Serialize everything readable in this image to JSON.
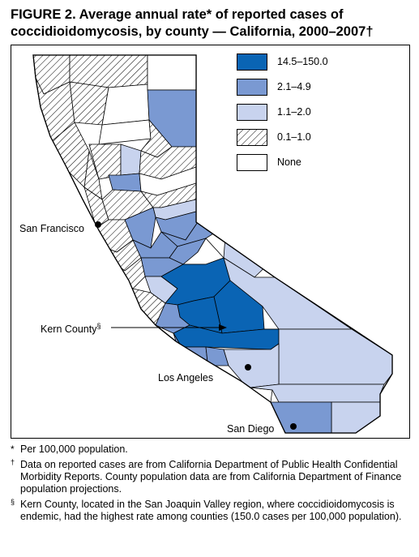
{
  "figure": {
    "title_line1": "FIGURE 2. Average annual rate* of reported cases of",
    "title_line2": "coccidioidomycosis, by county — California, 2000–2007†"
  },
  "legend": {
    "items": [
      {
        "label": "14.5–150.0",
        "color": "#0a64b4"
      },
      {
        "label": "2.1–4.9",
        "color": "#7a99d2"
      },
      {
        "label": "1.1–2.0",
        "color": "#c8d3ee"
      },
      {
        "label": "0.1–1.0",
        "pattern": "diagonal-hatch"
      },
      {
        "label": "None",
        "color": "#ffffff"
      }
    ]
  },
  "map_labels": {
    "san_francisco": "San Francisco",
    "kern_county": "Kern County",
    "kern_mark": "§",
    "los_angeles": "Los Angeles",
    "san_diego": "San Diego"
  },
  "footnotes": [
    {
      "mark": "*",
      "text": "Per 100,000 population."
    },
    {
      "mark": "†",
      "text": "Data on reported cases are from California Department of Public Health Confidential Morbidity Reports. County population data are from California Department of Finance population projections."
    },
    {
      "mark": "§",
      "text": "Kern County, located in the San Joaquin Valley region, where coccidioidomycosis is endemic, had the highest rate among counties (150.0 cases per 100,000 population)."
    }
  ]
}
